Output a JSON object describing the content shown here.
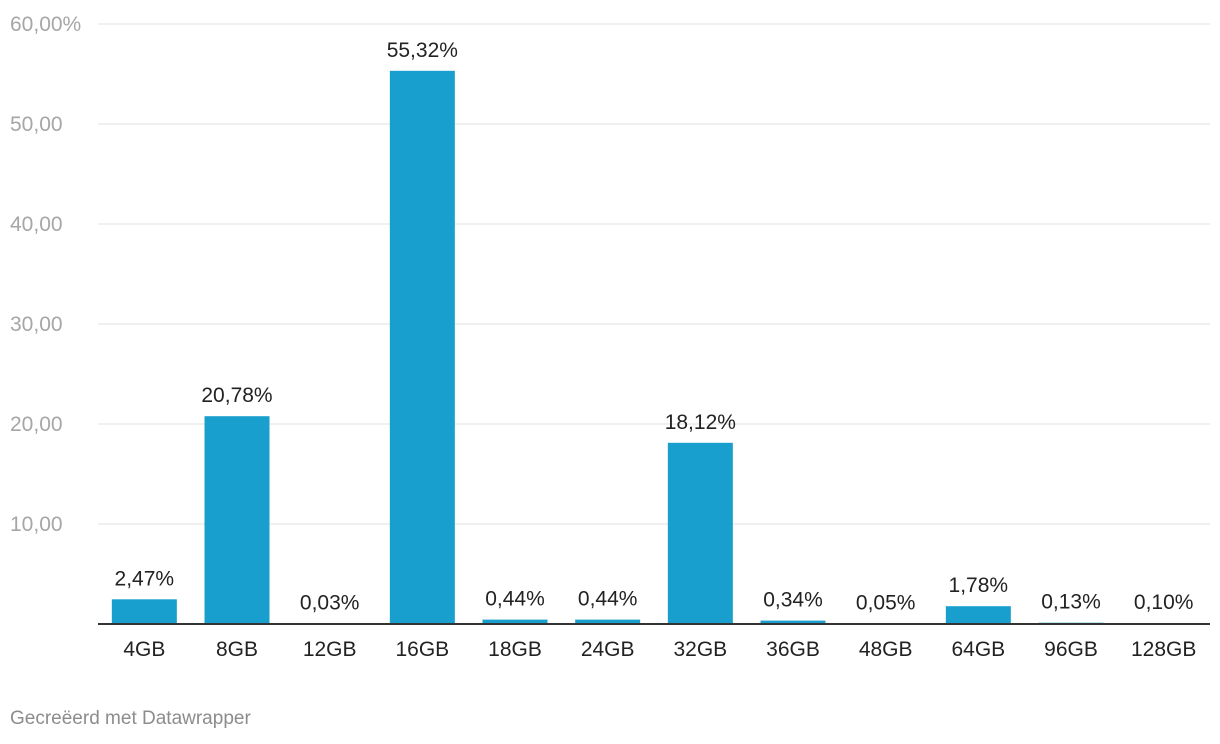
{
  "chart_data": {
    "type": "bar",
    "categories": [
      "4GB",
      "8GB",
      "12GB",
      "16GB",
      "18GB",
      "24GB",
      "32GB",
      "36GB",
      "48GB",
      "64GB",
      "96GB",
      "128GB"
    ],
    "values": [
      2.47,
      20.78,
      0.03,
      55.32,
      0.44,
      0.44,
      18.12,
      0.34,
      0.05,
      1.78,
      0.13,
      0.1
    ],
    "value_labels": [
      "2,47%",
      "20,78%",
      "0,03%",
      "55,32%",
      "0,44%",
      "0,44%",
      "18,12%",
      "0,34%",
      "0,05%",
      "1,78%",
      "0,13%",
      "0,10%"
    ],
    "y_ticks": [
      10,
      20,
      30,
      40,
      50,
      60
    ],
    "y_tick_labels": [
      "10,00",
      "20,00",
      "30,00",
      "40,00",
      "50,00",
      "60,00%"
    ],
    "ylim": [
      0,
      60
    ],
    "grid": true,
    "bar_color": "#199fcd",
    "grid_color": "#e0e0e0",
    "axis_color": "#333333",
    "tick_label_color": "#a6a6a6",
    "label_color": "#222222"
  },
  "footer": {
    "credit": "Gecreëerd met Datawrapper"
  }
}
